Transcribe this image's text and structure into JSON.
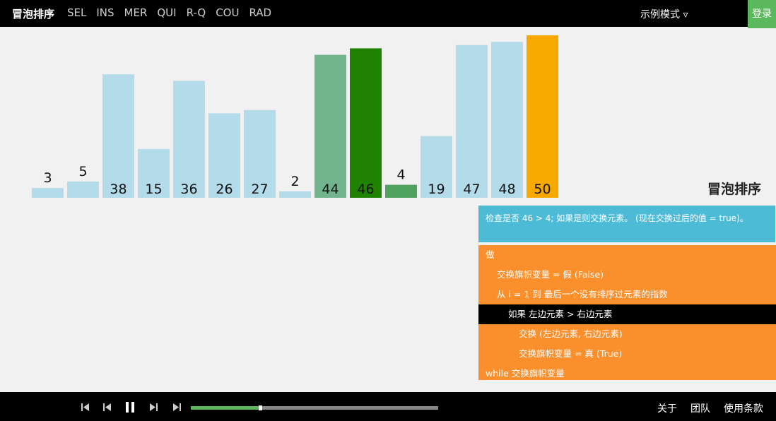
{
  "nav": {
    "brand": "冒泡排序",
    "items": [
      "SEL",
      "INS",
      "MER",
      "QUI",
      "R-Q",
      "COU",
      "RAD"
    ],
    "mode": "示例模式",
    "login": "登录"
  },
  "chart_data": {
    "type": "bar",
    "values": [
      3,
      5,
      38,
      15,
      36,
      26,
      27,
      2,
      44,
      46,
      4,
      19,
      47,
      48,
      50
    ],
    "colors": [
      "#b3dbe9",
      "#b3dbe9",
      "#b3dbe9",
      "#b3dbe9",
      "#b3dbe9",
      "#b3dbe9",
      "#b3dbe9",
      "#b3dbe9",
      "#72b48e",
      "#1f8200",
      "#4fa35f",
      "#b3dbe9",
      "#b3dbe9",
      "#b3dbe9",
      "#f7a900"
    ],
    "ylim": [
      0,
      50
    ]
  },
  "side_title": "冒泡排序",
  "status": "检查是否 46 > 4; 如果是则交换元素。 (现在交换过后的值 = true)。",
  "code": [
    "做",
    "交换旗帜变量 = 假 (False)",
    "从 i = 1 到 最后一个没有排序过元素的指数",
    "如果 左边元素 > 右边元素",
    "交换 (左边元素, 右边元素)",
    "交换旗帜变量 = 真 (True)",
    "while 交换旗帜变量"
  ],
  "footer": [
    "关于",
    "团队",
    "使用条款"
  ]
}
